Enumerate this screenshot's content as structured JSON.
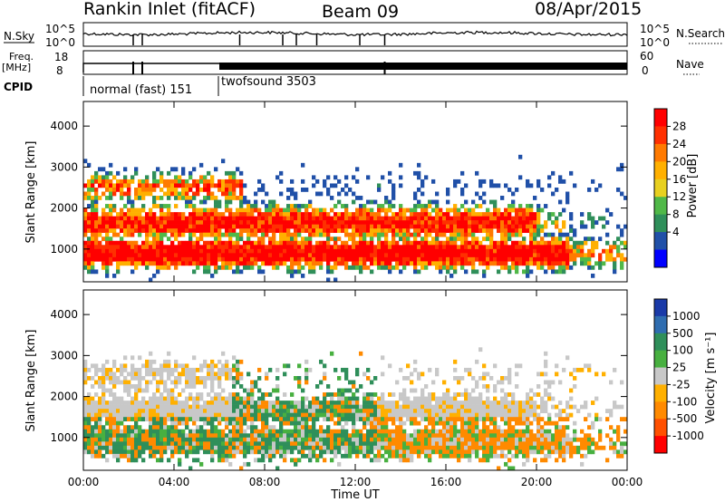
{
  "header": {
    "station": "Rankin Inlet (fitACF)",
    "beam": "Beam 09",
    "date": "08/Apr/2015"
  },
  "noise_panel": {
    "left_label": "N.Sky",
    "right_label": "N.Search",
    "yticks": [
      "10^5",
      "10^0"
    ]
  },
  "freq_panel": {
    "left_label_1": "Freq.",
    "left_label_2": "[MHz]",
    "right_label": "Nave",
    "left_ticks": [
      "18",
      "8"
    ],
    "right_ticks": [
      "60",
      "0"
    ]
  },
  "cpid": {
    "label": "CPID",
    "segments": [
      {
        "name": "normal (fast) 151",
        "start_h": 0.0
      },
      {
        "name": "twofsound 3503",
        "start_h": 6.0
      }
    ]
  },
  "chart_data": [
    {
      "type": "heatmap",
      "name": "power",
      "ylabel": "Slant Range [km]",
      "yticks": [
        1000,
        2000,
        3000,
        4000
      ],
      "ylim": [
        200,
        4600
      ],
      "xlim": [
        0,
        24
      ],
      "colorbar": {
        "label": "Power [dB]",
        "ticks": [
          "28",
          "24",
          "20",
          "16",
          "12",
          "8",
          "4"
        ],
        "colors": [
          "#ff0000",
          "#ff3000",
          "#ff7a00",
          "#ffb000",
          "#e8d020",
          "#50b848",
          "#2f8f5a",
          "#2050a8",
          "#0000ff"
        ]
      }
    },
    {
      "type": "heatmap",
      "name": "velocity",
      "ylabel": "Slant Range [km]",
      "yticks": [
        1000,
        2000,
        3000,
        4000
      ],
      "ylim": [
        200,
        4600
      ],
      "xlim": [
        0,
        24
      ],
      "xlabel": "Time UT",
      "xticks": [
        "00:00",
        "04:00",
        "08:00",
        "12:00",
        "16:00",
        "20:00",
        "00:00"
      ],
      "colorbar": {
        "label": "Velocity [m s⁻¹]",
        "ticks": [
          "1000",
          "500",
          "100",
          "25",
          "-25",
          "-100",
          "-500",
          "-1000"
        ],
        "colors": [
          "#1a3aa8",
          "#2f6db0",
          "#2f8f5a",
          "#48b040",
          "#c8c8c8",
          "#ffb000",
          "#ff8a00",
          "#ff5000",
          "#ff0000"
        ]
      }
    }
  ]
}
